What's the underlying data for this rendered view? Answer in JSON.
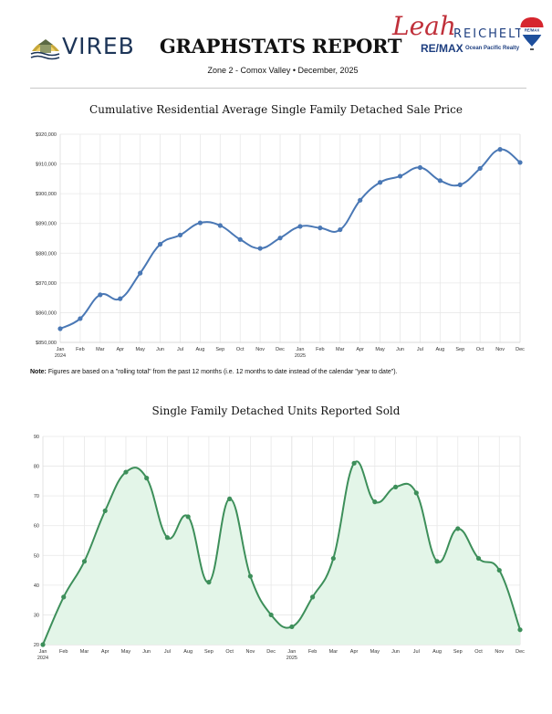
{
  "header": {
    "left_logo_text": "VIREB",
    "title": "GRAPHSTATS REPORT",
    "subtitle": "Zone 2 - Comox Valley  •  December, 2025",
    "agent_first_name": "Leah",
    "agent_last_name": "REICHELT",
    "brokerage": "RE/MAX",
    "brokerage_office": "Ocean Pacific Realty",
    "balloon_text": "RE/MAX"
  },
  "note": {
    "label": "Note:",
    "text": " Figures are based on a \"rolling total\" from the past 12 months (i.e. 12 months to date instead of the calendar \"year to date\")."
  },
  "colors": {
    "line1": "#4a78b5",
    "line2": "#3d8f5a",
    "fill2": "#e3f5e8",
    "grid": "#e8e8e8"
  },
  "chart_data": [
    {
      "type": "line",
      "title": "Cumulative Residential Average Single Family Detached Sale Price",
      "xlabel": "",
      "ylabel": "",
      "categories": [
        "Jan",
        "Feb",
        "Mar",
        "Apr",
        "May",
        "Jun",
        "Jul",
        "Aug",
        "Sep",
        "Oct",
        "Nov",
        "Dec",
        "Jan",
        "Feb",
        "Mar",
        "Apr",
        "May",
        "Jun",
        "Jul",
        "Aug",
        "Sep",
        "Oct",
        "Nov",
        "Dec"
      ],
      "year_labels": {
        "0": "2024",
        "12": "2025"
      },
      "series": [
        {
          "name": "Average Sale Price",
          "values": [
            854600,
            858000,
            866000,
            864700,
            873300,
            883000,
            886100,
            890200,
            889300,
            884600,
            881600,
            885100,
            889000,
            888500,
            887900,
            897800,
            903800,
            905900,
            908800,
            904400,
            903000,
            908500,
            914900,
            910500
          ]
        }
      ],
      "ylim": [
        850000,
        920000
      ],
      "yticks": [
        850000,
        860000,
        870000,
        880000,
        890000,
        900000,
        910000,
        920000
      ],
      "ytick_labels": [
        "$850,000",
        "$860,000",
        "$870,000",
        "$880,000",
        "$890,000",
        "$900,000",
        "$910,000",
        "$920,000"
      ],
      "grid": true
    },
    {
      "type": "area",
      "title": "Single Family Detached Units Reported Sold",
      "xlabel": "",
      "ylabel": "",
      "categories": [
        "Jan",
        "Feb",
        "Mar",
        "Apr",
        "May",
        "Jun",
        "Jul",
        "Aug",
        "Sep",
        "Oct",
        "Nov",
        "Dec",
        "Jan",
        "Feb",
        "Mar",
        "Apr",
        "May",
        "Jun",
        "Jul",
        "Aug",
        "Sep",
        "Oct",
        "Nov",
        "Dec"
      ],
      "year_labels": {
        "0": "2024",
        "12": "2025"
      },
      "series": [
        {
          "name": "Units Sold",
          "values": [
            20,
            36,
            48,
            65,
            78,
            76,
            56,
            63,
            41,
            69,
            43,
            30,
            26,
            36,
            49,
            81,
            68,
            73,
            71,
            48,
            59,
            49,
            45,
            25
          ]
        }
      ],
      "ylim": [
        20,
        90
      ],
      "yticks": [
        20,
        30,
        40,
        50,
        60,
        70,
        80,
        90
      ],
      "ytick_labels": [
        "20",
        "30",
        "40",
        "50",
        "60",
        "70",
        "80",
        "90"
      ],
      "grid": true
    }
  ]
}
